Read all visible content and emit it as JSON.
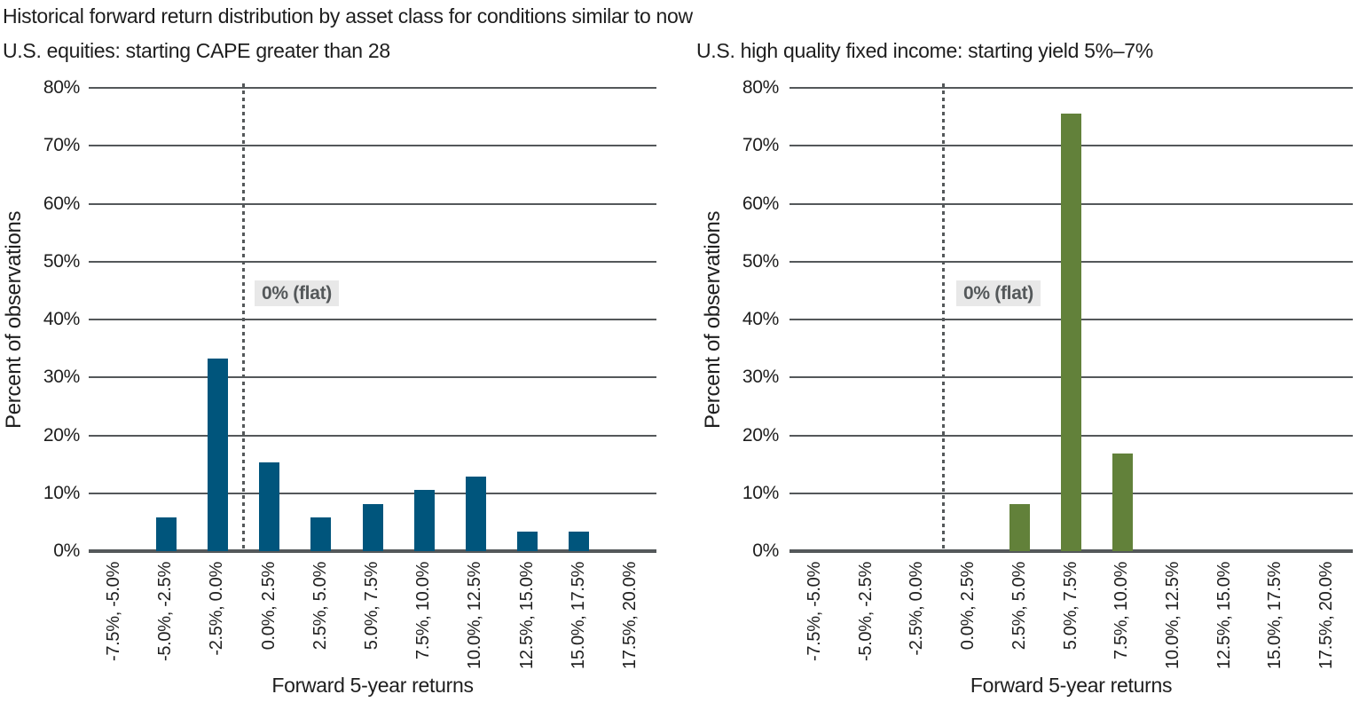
{
  "page": {
    "title": "Historical forward return distribution by asset class for conditions similar to now"
  },
  "colors": {
    "equities_bar": "#00557C",
    "fixed_income_bar": "#62813A",
    "gridline": "#54585A",
    "axis_line": "#54585A",
    "dashed_line": "#54585A",
    "text": "#1E1E1E",
    "annotation_text": "#54585A",
    "annotation_background": "#E8E8E8"
  },
  "chart_data": [
    {
      "type": "bar",
      "title": "U.S. equities: starting CAPE greater than 28",
      "xlabel": "Forward 5-year returns",
      "ylabel": "Percent of observations",
      "ylim": [
        0,
        80
      ],
      "grid": true,
      "legend_position": "none",
      "ytick_labels": [
        "0%",
        "10%",
        "20%",
        "30%",
        "40%",
        "50%",
        "60%",
        "70%",
        "80%"
      ],
      "categories": [
        "-7.5%, -5.0%",
        "-5.0%, -2.5%",
        "-2.5%, 0.0%",
        "0.0%, 2.5%",
        "2.5%, 5.0%",
        "5.0%, 7.5%",
        "7.5%, 10.0%",
        "10.0%, 12.5%",
        "12.5%, 15.0%",
        "15.0%, 17.5%",
        "17.5%, 20.0%"
      ],
      "values": [
        0,
        5.8,
        33.3,
        15.4,
        5.8,
        8.1,
        10.6,
        12.9,
        3.4,
        3.4,
        0
      ],
      "bar_color": "#00557C",
      "annotation": {
        "text": "0% (flat)",
        "at_boundary_after_category_index": 2
      }
    },
    {
      "type": "bar",
      "title": "U.S. high quality fixed income: starting yield 5%–7%",
      "xlabel": "Forward 5-year returns",
      "ylabel": "Percent of observations",
      "ylim": [
        0,
        80
      ],
      "grid": true,
      "legend_position": "none",
      "ytick_labels": [
        "0%",
        "10%",
        "20%",
        "30%",
        "40%",
        "50%",
        "60%",
        "70%",
        "80%"
      ],
      "categories": [
        "-7.5%, -5.0%",
        "-5.0%, -2.5%",
        "-2.5%, 0.0%",
        "0.0%, 2.5%",
        "2.5%, 5.0%",
        "5.0%, 7.5%",
        "7.5%, 10.0%",
        "10.0%, 12.5%",
        "12.5%, 15.0%",
        "15.0%, 17.5%",
        "17.5%, 20.0%"
      ],
      "values": [
        0,
        0,
        0,
        0,
        8.1,
        75.5,
        16.9,
        0,
        0,
        0,
        0
      ],
      "bar_color": "#62813A",
      "annotation": {
        "text": "0% (flat)",
        "at_boundary_after_category_index": 2
      }
    }
  ]
}
